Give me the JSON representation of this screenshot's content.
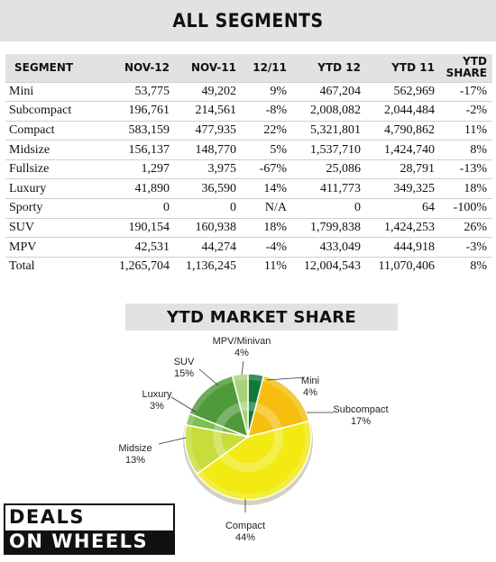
{
  "title": "ALL SEGMENTS",
  "table": {
    "headers": [
      "SEGMENT",
      "NOV-12",
      "NOV-11",
      "12/11",
      "YTD 12",
      "YTD 11",
      "YTD SHARE"
    ],
    "rows": [
      [
        "Mini",
        "53,775",
        "49,202",
        "9%",
        "467,204",
        "562,969",
        "-17%"
      ],
      [
        "Subcompact",
        "196,761",
        "214,561",
        "-8%",
        "2,008,082",
        "2,044,484",
        "-2%"
      ],
      [
        "Compact",
        "583,159",
        "477,935",
        "22%",
        "5,321,801",
        "4,790,862",
        "11%"
      ],
      [
        "Midsize",
        "156,137",
        "148,770",
        "5%",
        "1,537,710",
        "1,424,740",
        "8%"
      ],
      [
        "Fullsize",
        "1,297",
        "3,975",
        "-67%",
        "25,086",
        "28,791",
        "-13%"
      ],
      [
        "Luxury",
        "41,890",
        "36,590",
        "14%",
        "411,773",
        "349,325",
        "18%"
      ],
      [
        "Sporty",
        "0",
        "0",
        "N/A",
        "0",
        "64",
        "-100%"
      ],
      [
        "SUV",
        "190,154",
        "160,938",
        "18%",
        "1,799,838",
        "1,424,253",
        "26%"
      ],
      [
        "MPV",
        "42,531",
        "44,274",
        "-4%",
        "433,049",
        "444,918",
        "-3%"
      ],
      [
        "Total",
        "1,265,704",
        "1,136,245",
        "11%",
        "12,004,543",
        "11,070,406",
        "8%"
      ]
    ]
  },
  "chart_data": {
    "type": "pie",
    "title": "YTD MARKET SHARE",
    "slices": [
      {
        "label": "Mini",
        "value": 4,
        "display": "4%",
        "color": "#0f7a3a"
      },
      {
        "label": "Subcompact",
        "value": 17,
        "display": "17%",
        "color": "#f6bf0f"
      },
      {
        "label": "Compact",
        "value": 44,
        "display": "44%",
        "color": "#f2ea12"
      },
      {
        "label": "Midsize",
        "value": 13,
        "display": "13%",
        "color": "#c8dc3a"
      },
      {
        "label": "Luxury",
        "value": 3,
        "display": "3%",
        "color": "#7fbf4c"
      },
      {
        "label": "SUV",
        "value": 15,
        "display": "15%",
        "color": "#4f9a3a"
      },
      {
        "label": "MPV/Minivan",
        "value": 4,
        "display": "4%",
        "color": "#a8d278"
      }
    ]
  },
  "logo": {
    "line1": "DEALS",
    "line2": "ON WHEELS"
  }
}
